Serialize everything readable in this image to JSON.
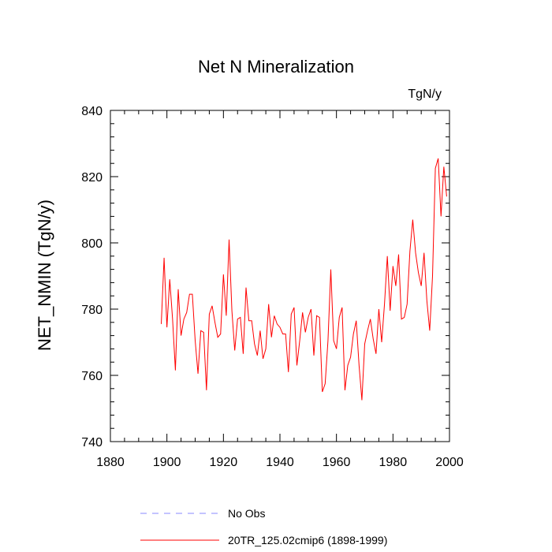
{
  "chart_data": {
    "type": "line",
    "title": "Net N Mineralization",
    "units": "TgN/y",
    "xlabel": "",
    "ylabel": "NET_NMIN  (TgN/y)",
    "xlim": [
      1880,
      2000
    ],
    "ylim": [
      740,
      840
    ],
    "xticks": [
      1880,
      1900,
      1920,
      1940,
      1960,
      1980,
      2000
    ],
    "yticks": [
      740,
      760,
      780,
      800,
      820,
      840
    ],
    "x_minor_step": 5,
    "y_minor_step": 4,
    "legend_position": "bottom-left",
    "series": [
      {
        "name": "No Obs",
        "color": "#8888ff",
        "dashed": true,
        "x": [],
        "values": []
      },
      {
        "name": "20TR_125.02cmip6 (1898-1999)",
        "color": "#ff0000",
        "dashed": false,
        "x_start": 1898,
        "values": [
          775.5,
          795.5,
          774.5,
          789,
          777,
          761.5,
          786,
          772,
          777,
          779,
          784.5,
          784.5,
          770.5,
          760.5,
          773.5,
          773,
          755.5,
          778.5,
          781,
          776,
          771.5,
          772.5,
          790.5,
          778,
          801,
          779.5,
          767.5,
          777,
          777.5,
          766.5,
          786.5,
          776.5,
          776.5,
          769.5,
          766,
          773.5,
          765,
          768,
          781.5,
          771.5,
          778,
          775.5,
          774.5,
          772.5,
          772.5,
          761,
          778.5,
          780.5,
          763,
          770.5,
          779,
          773,
          777.5,
          780,
          766,
          778,
          777.5,
          755,
          757.5,
          770.5,
          792,
          770.5,
          768,
          777.5,
          780.5,
          755.5,
          763,
          765.5,
          772.5,
          776.5,
          763,
          752.5,
          769.5,
          773.5,
          777,
          771,
          766.5,
          780,
          770,
          781.5,
          796,
          779.5,
          793,
          787,
          796.5,
          777,
          777.5,
          781.5,
          797.5,
          807,
          797,
          791,
          787,
          797,
          782.5,
          773.5,
          790,
          822.5,
          825.5,
          808,
          823,
          814
        ]
      }
    ]
  }
}
